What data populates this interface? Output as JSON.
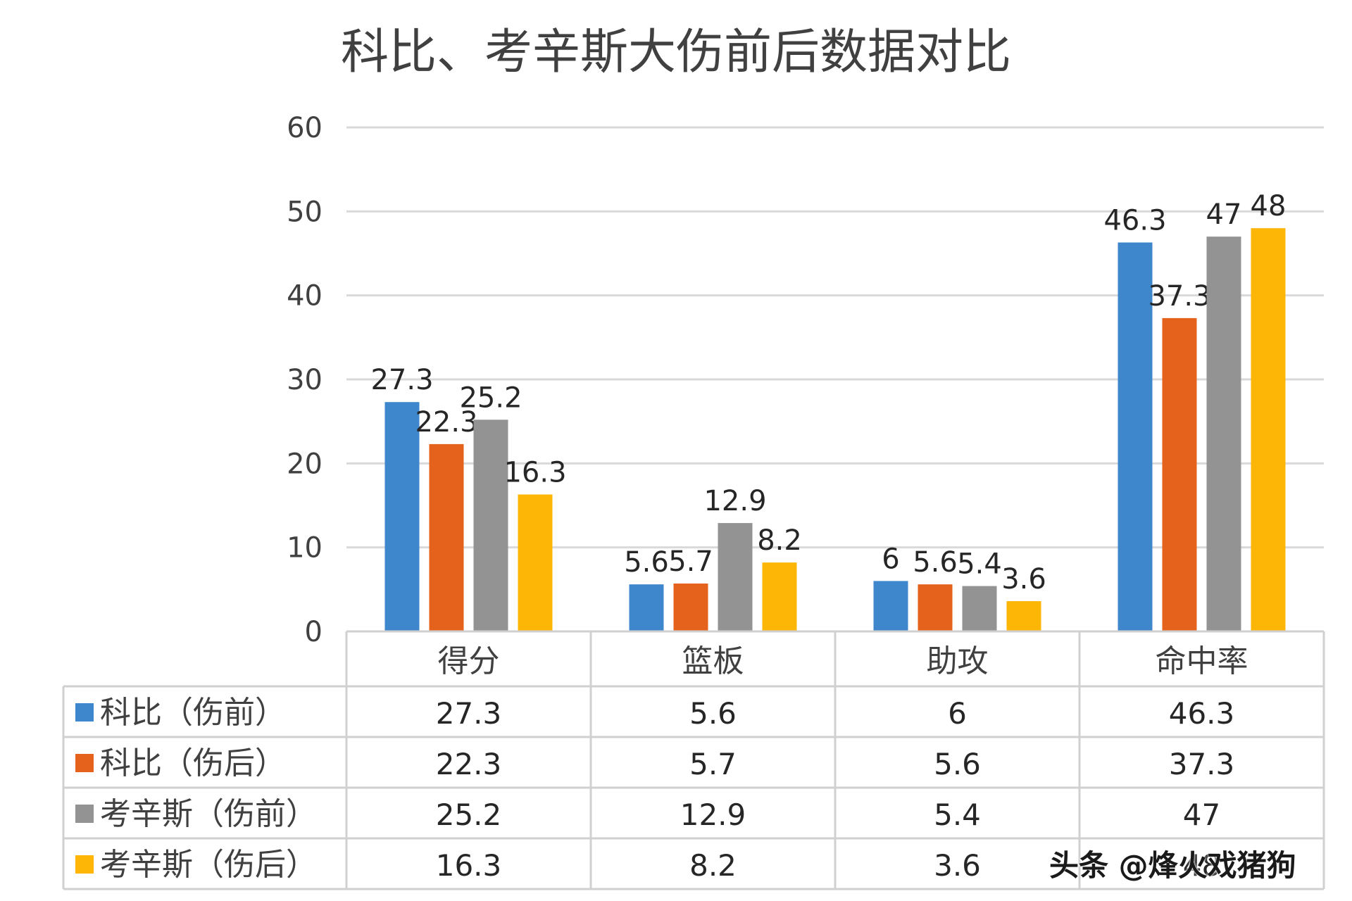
{
  "chart_data": {
    "type": "bar",
    "title": "科比、考辛斯大伤前后数据对比",
    "categories": [
      "得分",
      "篮板",
      "助攻",
      "命中率"
    ],
    "series": [
      {
        "name": "科比（伤前）",
        "values": [
          27.3,
          5.6,
          6,
          46.3
        ],
        "color": "#3f87cc"
      },
      {
        "name": "科比（伤后）",
        "values": [
          22.3,
          5.7,
          5.6,
          37.3
        ],
        "color": "#e4621b"
      },
      {
        "name": "考辛斯（伤前）",
        "values": [
          25.2,
          12.9,
          5.4,
          47
        ],
        "color": "#939393"
      },
      {
        "name": "考辛斯（伤后）",
        "values": [
          16.3,
          8.2,
          3.6,
          48
        ],
        "color": "#fdb605"
      }
    ],
    "yticks": [
      "0",
      "10",
      "20",
      "30",
      "40",
      "50",
      "60"
    ],
    "ylim": [
      0,
      60
    ],
    "grid": true,
    "legend": "data-table"
  },
  "watermark": "头条 @烽火戏猪狗"
}
